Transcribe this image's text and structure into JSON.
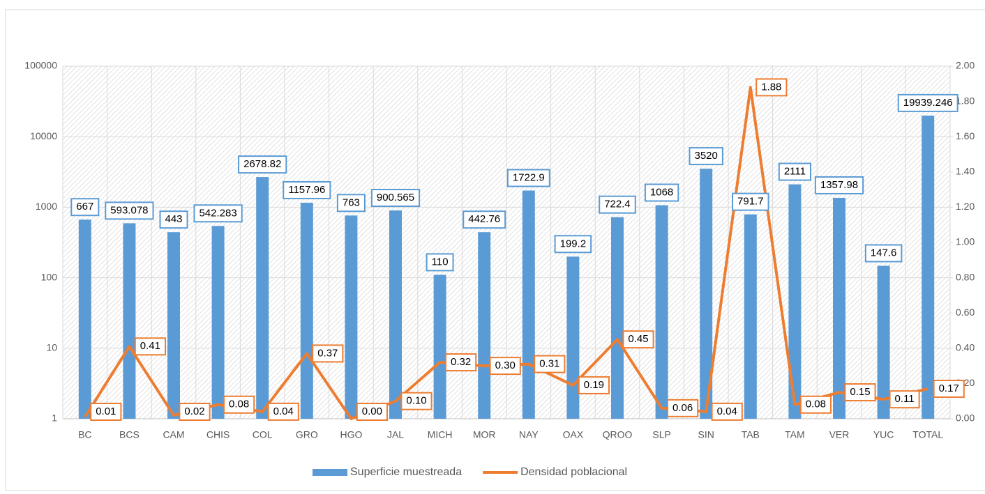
{
  "chart_data": {
    "type": "bar_line",
    "categories": [
      "BC",
      "BCS",
      "CAM",
      "CHIS",
      "COL",
      "GRO",
      "HGO",
      "JAL",
      "MICH",
      "MOR",
      "NAY",
      "OAX",
      "QROO",
      "SLP",
      "SIN",
      "TAB",
      "TAM",
      "VER",
      "YUC",
      "TOTAL"
    ],
    "series": [
      {
        "name": "Superficie muestreada",
        "type": "bar",
        "color": "#5b9bd5",
        "values": [
          667,
          593.078,
          443,
          542.283,
          2678.82,
          1157.96,
          763,
          900.565,
          110,
          442.76,
          1722.9,
          199.2,
          722.4,
          1068,
          3520,
          791.7,
          2111,
          1357.98,
          147.6,
          19939.246
        ]
      },
      {
        "name": "Densidad poblacional",
        "type": "line",
        "axis": "y2",
        "color": "#ed7d31",
        "values": [
          0.01,
          0.41,
          0.02,
          0.08,
          0.04,
          0.37,
          0,
          0.1,
          0.32,
          0.3,
          0.31,
          0.19,
          0.45,
          0.06,
          0.04,
          1.88,
          0.08,
          0.15,
          0.11,
          0.17
        ],
        "value_labels": [
          "0.01",
          "0.41",
          "0.02",
          "0.08",
          "0.04",
          "0.37",
          "0.00",
          "0.10",
          "0.32",
          "0.30",
          "0.31",
          "0.19",
          "0.45",
          "0.06",
          "0.04",
          "1.88",
          "0.08",
          "0.15",
          "0.11",
          "0.17"
        ]
      }
    ],
    "yscale": "log",
    "ylim": [
      1,
      100000
    ],
    "yticks": [
      1,
      10,
      100,
      1000,
      10000,
      100000
    ],
    "y2lim": [
      0,
      2
    ],
    "y2ticks": [
      {
        "value": 0,
        "label": "0.00"
      },
      {
        "value": 0.2,
        "label": "0.20"
      },
      {
        "value": 0.4,
        "label": "0.40"
      },
      {
        "value": 0.6,
        "label": "0.60"
      },
      {
        "value": 0.8,
        "label": "0.80"
      },
      {
        "value": 1,
        "label": "1.00"
      },
      {
        "value": 1.2,
        "label": "1.20"
      },
      {
        "value": 1.4,
        "label": "1.40"
      },
      {
        "value": 1.6,
        "label": "1.60"
      },
      {
        "value": 1.8,
        "label": "1.80"
      },
      {
        "value": 2,
        "label": "2.00"
      }
    ],
    "grid": true,
    "legend": "bottom"
  }
}
